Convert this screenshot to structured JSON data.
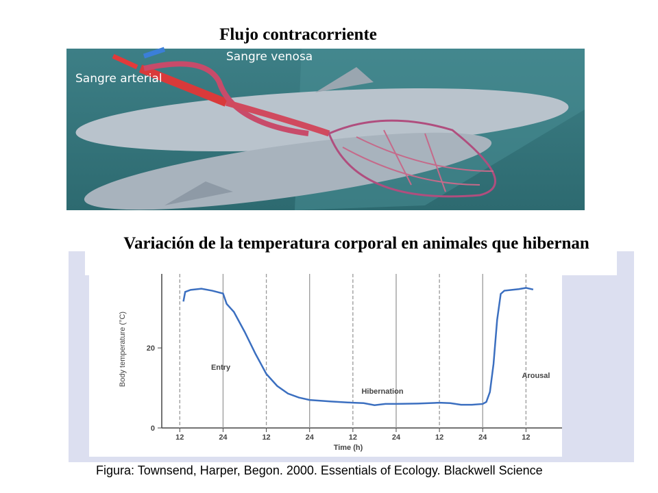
{
  "heading": "Flujo contracorriente",
  "figure": {
    "labels": [
      "Sangre arterial",
      "Sangre venosa"
    ]
  },
  "chart_heading": "Variación de la temperatura corporal en animales que hibernan",
  "chart": {
    "type": "line",
    "xlabel": "Time (h)",
    "ylabel": "Body temperature (°C)",
    "annotations": [
      "Entry",
      "Hibernation",
      "Arousal"
    ],
    "color": "#3b6fc0",
    "x": [
      13,
      13.5,
      15,
      18,
      21,
      24,
      25,
      26,
      27,
      30,
      33,
      36,
      39,
      42,
      45,
      48,
      54,
      60,
      63,
      66,
      69,
      72,
      78,
      84,
      87,
      90,
      93,
      96,
      97,
      98,
      99,
      100,
      101,
      102,
      104,
      106,
      108,
      110
    ],
    "values": [
      31.6,
      34,
      34.5,
      34.8,
      34.3,
      33.6,
      31,
      30,
      29,
      24,
      18.5,
      13.5,
      10.5,
      8.6,
      7.6,
      7,
      6.6,
      6.3,
      6.2,
      5.7,
      6,
      6,
      6.1,
      6.3,
      6.2,
      5.8,
      5.8,
      6,
      6.5,
      9,
      16,
      27,
      33.5,
      34.3,
      34.5,
      34.7,
      35,
      34.6
    ],
    "xlim": [
      7,
      118
    ],
    "ylim": [
      0,
      38.5
    ],
    "xticks": [
      12,
      24,
      {
        "value": 36,
        "label": "12"
      },
      {
        "value": 48,
        "label": "24"
      },
      {
        "value": 60,
        "label": "12"
      },
      {
        "value": 72,
        "label": "24"
      },
      {
        "value": 84,
        "label": "12"
      },
      {
        "value": 96,
        "label": "24"
      },
      {
        "value": 108,
        "label": "12"
      }
    ],
    "yticks": [
      0,
      20
    ],
    "grid": true
  },
  "caption": "Figura: Townsend, Harper, Begon. 2000. Essentials of Ecology. Blackwell Science"
}
